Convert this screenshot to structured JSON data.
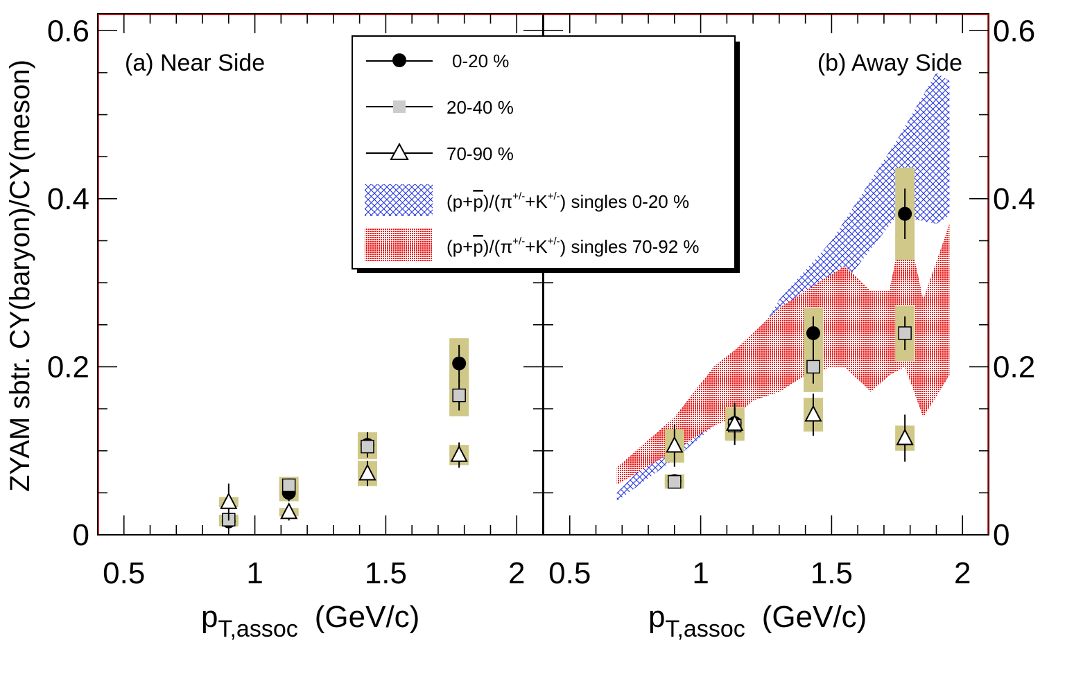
{
  "chart_data": [
    {
      "type": "scatter",
      "panel_label": "(a) Near Side",
      "xlabel_main": "p",
      "xlabel_sub": "T,assoc",
      "xlabel_unit": "(GeV/c)",
      "ylabel": "ZYAM sbtr. CY(baryon)/CY(meson)",
      "xlim": [
        0.4,
        2.1
      ],
      "ylim": [
        0,
        0.62
      ],
      "xticks": [
        "0.5",
        "1",
        "1.5",
        "2"
      ],
      "yticks": [
        "0",
        "0.2",
        "0.4",
        "0.6"
      ],
      "series": [
        {
          "name": "0-20 %",
          "marker": "circle",
          "x": [
            0.9,
            1.13,
            1.43,
            1.78
          ],
          "y": [
            0.016,
            0.05,
            0.107,
            0.204
          ],
          "stat_err": [
            0.006,
            0.01,
            0.015,
            0.022
          ],
          "sys_err": [
            0.006,
            0.01,
            0.015,
            0.03
          ]
        },
        {
          "name": "20-40 %",
          "marker": "square",
          "x": [
            0.9,
            1.13,
            1.43,
            1.78
          ],
          "y": [
            0.018,
            0.059,
            0.105,
            0.166
          ],
          "stat_err": [
            0.005,
            0.008,
            0.012,
            0.018
          ],
          "sys_err": [
            0.006,
            0.01,
            0.015,
            0.025
          ]
        },
        {
          "name": "70-90 %",
          "marker": "triangle",
          "x": [
            0.9,
            1.13,
            1.43,
            1.78
          ],
          "y": [
            0.039,
            0.027,
            0.073,
            0.095
          ],
          "stat_err": [
            0.022,
            0.01,
            0.015,
            0.015
          ],
          "sys_err": [
            0.006,
            0.005,
            0.015,
            0.012
          ]
        }
      ]
    },
    {
      "type": "scatter",
      "panel_label": "(b) Away Side",
      "xlabel_main": "p",
      "xlabel_sub": "T,assoc",
      "xlabel_unit": "(GeV/c)",
      "xlim": [
        0.4,
        2.1
      ],
      "ylim": [
        0,
        0.62
      ],
      "xticks": [
        "0.5",
        "1",
        "1.5",
        "2"
      ],
      "yticks": [
        "0",
        "0.2",
        "0.4",
        "0.6"
      ],
      "series": [
        {
          "name": "0-20 %",
          "marker": "circle",
          "x": [
            0.9,
            1.13,
            1.43,
            1.78
          ],
          "y": [
            0.064,
            0.133,
            0.24,
            0.382
          ],
          "stat_err": [
            0.005,
            0.018,
            0.02,
            0.03
          ],
          "sys_err": [
            0.008,
            0.015,
            0.03,
            0.055
          ]
        },
        {
          "name": "20-40 %",
          "marker": "square",
          "x": [
            0.9,
            1.13,
            1.43,
            1.78
          ],
          "y": [
            0.063,
            0.13,
            0.2,
            0.24
          ],
          "stat_err": [
            0.005,
            0.015,
            0.02,
            0.02
          ],
          "sys_err": [
            0.008,
            0.015,
            0.03,
            0.033
          ]
        },
        {
          "name": "70-90 %",
          "marker": "triangle",
          "x": [
            0.9,
            1.13,
            1.43,
            1.78
          ],
          "y": [
            0.106,
            0.132,
            0.143,
            0.115
          ],
          "stat_err": [
            0.025,
            0.025,
            0.025,
            0.028
          ],
          "sys_err": [
            0.02,
            0.02,
            0.02,
            0.015
          ]
        }
      ],
      "bands": [
        {
          "name": "(p+p̄)/(π+/- +K+/-) singles 0-20 %",
          "pattern": "blue-crosshatch",
          "x": [
            0.68,
            0.9,
            1.13,
            1.3,
            1.5,
            1.75,
            1.9,
            1.95
          ],
          "low": [
            0.04,
            0.09,
            0.15,
            0.21,
            0.28,
            0.38,
            0.37,
            0.38
          ],
          "high": [
            0.05,
            0.12,
            0.19,
            0.28,
            0.35,
            0.47,
            0.55,
            0.54
          ]
        },
        {
          "name": "(p+p̄)/(π+/- +K+/-) singles 70-92 %",
          "pattern": "red-dots",
          "x": [
            0.68,
            0.9,
            1.05,
            1.13,
            1.2,
            1.3,
            1.4,
            1.5,
            1.55,
            1.65,
            1.72,
            1.78,
            1.85,
            1.95
          ],
          "low": [
            0.06,
            0.1,
            0.13,
            0.14,
            0.16,
            0.17,
            0.19,
            0.2,
            0.2,
            0.17,
            0.19,
            0.2,
            0.14,
            0.19
          ],
          "high": [
            0.08,
            0.14,
            0.2,
            0.22,
            0.24,
            0.27,
            0.29,
            0.31,
            0.32,
            0.29,
            0.29,
            0.38,
            0.28,
            0.37
          ]
        }
      ]
    }
  ],
  "legend": {
    "placement": "top-center",
    "entries": [
      {
        "label": "0-20 %",
        "marker": "circle"
      },
      {
        "label": "20-40 %",
        "marker": "square"
      },
      {
        "label": "70-90 %",
        "marker": "triangle"
      },
      {
        "label_a": "(p+",
        "label_pbar": "p",
        "label_b": ")/(π",
        "sup1": "+/-",
        "label_c": "+K",
        "sup2": "+/-",
        "label_d": ") singles 0-20 %",
        "marker": "blue-crosshatch"
      },
      {
        "label_a": "(p+",
        "label_pbar": "p",
        "label_b": ")/(π",
        "sup1": "+/-",
        "label_c": "+K",
        "sup2": "+/-",
        "label_d": ") singles  70-92 %",
        "marker": "red-dots"
      }
    ]
  },
  "colors": {
    "sys_box": "#cfc888",
    "band_blue": "#2233dd",
    "band_red": "#e60000",
    "square_fill": "#cccccc",
    "frame_red": "#c00000"
  }
}
